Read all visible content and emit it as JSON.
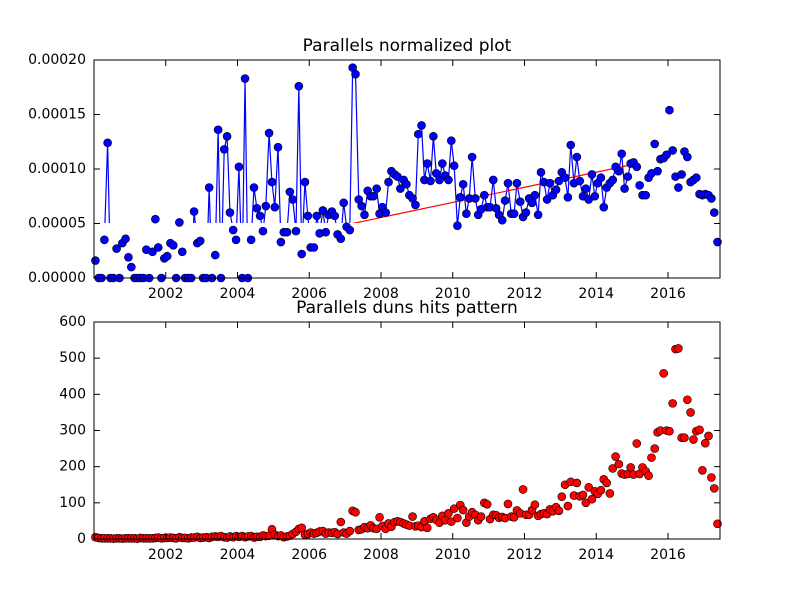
{
  "chart_data": [
    {
      "type": "line",
      "title": "Parallels normalized plot",
      "x": [
        2000.04,
        2000.13,
        2000.21,
        2000.29,
        2000.38,
        2000.46,
        2000.54,
        2000.63,
        2000.71,
        2000.79,
        2000.88,
        2000.96,
        2001.04,
        2001.13,
        2001.21,
        2001.29,
        2001.38,
        2001.46,
        2001.54,
        2001.63,
        2001.71,
        2001.79,
        2001.88,
        2001.96,
        2002.04,
        2002.13,
        2002.21,
        2002.29,
        2002.38,
        2002.46,
        2002.54,
        2002.63,
        2002.71,
        2002.79,
        2002.88,
        2002.96,
        2003.04,
        2003.13,
        2003.21,
        2003.29,
        2003.38,
        2003.46,
        2003.54,
        2003.63,
        2003.71,
        2003.79,
        2003.88,
        2003.96,
        2004.04,
        2004.13,
        2004.21,
        2004.29,
        2004.38,
        2004.46,
        2004.54,
        2004.63,
        2004.71,
        2004.79,
        2004.88,
        2004.96,
        2005.04,
        2005.13,
        2005.21,
        2005.29,
        2005.38,
        2005.46,
        2005.54,
        2005.63,
        2005.71,
        2005.79,
        2005.88,
        2005.96,
        2006.04,
        2006.13,
        2006.21,
        2006.29,
        2006.38,
        2006.46,
        2006.54,
        2006.63,
        2006.71,
        2006.79,
        2006.88,
        2006.96,
        2007.04,
        2007.13,
        2007.21,
        2007.29,
        2007.38,
        2007.46,
        2007.54,
        2007.63,
        2007.71,
        2007.79,
        2007.88,
        2007.96,
        2008.04,
        2008.13,
        2008.21,
        2008.29,
        2008.38,
        2008.46,
        2008.54,
        2008.63,
        2008.71,
        2008.79,
        2008.88,
        2008.96,
        2009.04,
        2009.13,
        2009.21,
        2009.29,
        2009.38,
        2009.46,
        2009.54,
        2009.63,
        2009.71,
        2009.79,
        2009.88,
        2009.96,
        2010.04,
        2010.13,
        2010.21,
        2010.29,
        2010.38,
        2010.46,
        2010.54,
        2010.63,
        2010.71,
        2010.79,
        2010.88,
        2010.96,
        2011.04,
        2011.13,
        2011.21,
        2011.29,
        2011.38,
        2011.46,
        2011.54,
        2011.63,
        2011.71,
        2011.79,
        2011.88,
        2011.96,
        2012.04,
        2012.13,
        2012.21,
        2012.29,
        2012.38,
        2012.46,
        2012.54,
        2012.63,
        2012.71,
        2012.79,
        2012.88,
        2012.96,
        2013.04,
        2013.13,
        2013.21,
        2013.29,
        2013.38,
        2013.46,
        2013.54,
        2013.63,
        2013.71,
        2013.79,
        2013.88,
        2013.96,
        2014.04,
        2014.13,
        2014.21,
        2014.29,
        2014.38,
        2014.46,
        2014.54,
        2014.63,
        2014.71,
        2014.79,
        2014.88,
        2014.96,
        2015.04,
        2015.13,
        2015.21,
        2015.29,
        2015.38,
        2015.46,
        2015.54,
        2015.63,
        2015.71,
        2015.79,
        2015.88,
        2015.96,
        2016.04,
        2016.13,
        2016.21,
        2016.29,
        2016.38,
        2016.46,
        2016.54,
        2016.63,
        2016.71,
        2016.79,
        2016.88,
        2016.96,
        2017.04,
        2017.13,
        2017.21,
        2017.29,
        2017.38
      ],
      "series": [
        {
          "color": "#0000ff",
          "values": [
            1.6e-05,
            0,
            0,
            3.5e-05,
            0.000124,
            0,
            0,
            2.7e-05,
            0,
            3.2e-05,
            3.6e-05,
            1.9e-05,
            1e-05,
            0,
            0,
            0,
            0,
            2.6e-05,
            0,
            2.4e-05,
            5.4e-05,
            2.8e-05,
            0,
            1.8e-05,
            2e-05,
            3.2e-05,
            3e-05,
            0,
            5.1e-05,
            2.4e-05,
            0,
            0,
            0,
            6.1e-05,
            3.2e-05,
            3.4e-05,
            0,
            0,
            8.3e-05,
            0,
            2.1e-05,
            0.000136,
            0,
            0.000118,
            0.00013,
            6e-05,
            4.4e-05,
            3.5e-05,
            0.000102,
            0,
            0.000183,
            0,
            3.5e-05,
            8.3e-05,
            6.4e-05,
            5.7e-05,
            4.3e-05,
            6.6e-05,
            0.000133,
            8.8e-05,
            6.5e-05,
            0.00012,
            3.3e-05,
            4.2e-05,
            4.2e-05,
            7.9e-05,
            7.2e-05,
            4.3e-05,
            0.000176,
            2.2e-05,
            8.8e-05,
            5.7e-05,
            2.8e-05,
            2.8e-05,
            5.7e-05,
            4.1e-05,
            6.2e-05,
            4.2e-05,
            5.8e-05,
            6.1e-05,
            5.7e-05,
            4e-05,
            3.6e-05,
            6.9e-05,
            4.7e-05,
            4.4e-05,
            0.000193,
            0.000187,
            7.2e-05,
            6.6e-05,
            5.8e-05,
            8e-05,
            7.5e-05,
            7.5e-05,
            8.2e-05,
            5.9e-05,
            6.5e-05,
            6e-05,
            8.8e-05,
            9.8e-05,
            9.5e-05,
            9.3e-05,
            8.2e-05,
            9e-05,
            8.6e-05,
            7.6e-05,
            7.3e-05,
            6.7e-05,
            0.000132,
            0.00014,
            9e-05,
            0.000105,
            8.9e-05,
            0.00013,
            9.6e-05,
            9e-05,
            0.000105,
            9.4e-05,
            9e-05,
            0.000126,
            0.000103,
            4.8e-05,
            7.4e-05,
            8.6e-05,
            5.9e-05,
            7.3e-05,
            0.000111,
            7.3e-05,
            5.8e-05,
            6.3e-05,
            7.6e-05,
            6.5e-05,
            6.5e-05,
            9e-05,
            6.4e-05,
            5.8e-05,
            5.3e-05,
            7.1e-05,
            8.7e-05,
            5.9e-05,
            5.9e-05,
            8.7e-05,
            7e-05,
            5.6e-05,
            6e-05,
            7.3e-05,
            6.9e-05,
            7.6e-05,
            5.8e-05,
            9.7e-05,
            8.8e-05,
            7.2e-05,
            8.7e-05,
            7.6e-05,
            8.1e-05,
            8.9e-05,
            9.7e-05,
            9.2e-05,
            7.4e-05,
            0.000122,
            8.7e-05,
            0.000111,
            8.9e-05,
            7.5e-05,
            8.2e-05,
            7.2e-05,
            9.5e-05,
            7.5e-05,
            8.7e-05,
            9.2e-05,
            6.5e-05,
            8.3e-05,
            8.7e-05,
            9e-05,
            0.000102,
            9.8e-05,
            0.000114,
            8.2e-05,
            9.3e-05,
            0.000105,
            0.000106,
            0.000102,
            8.5e-05,
            7.6e-05,
            7.6e-05,
            9.2e-05,
            9.6e-05,
            0.000123,
            9.8e-05,
            0.000109,
            0.00011,
            0.000113,
            0.000154,
            0.000117,
            9.3e-05,
            8.3e-05,
            9.5e-05,
            0.000116,
            0.000111,
            8.8e-05,
            9e-05,
            9.2e-05,
            7.7e-05,
            7.6e-05,
            7.7e-05,
            7.6e-05,
            7.3e-05,
            6e-05,
            3.3e-05
          ]
        }
      ],
      "trend_line": {
        "color": "#ff0000",
        "x": [
          2000,
          2017.45
        ],
        "values": [
          0,
          0.000121
        ]
      },
      "xlim": [
        2000,
        2017.45
      ],
      "xticks": [
        2002,
        2004,
        2006,
        2008,
        2010,
        2012,
        2014,
        2016
      ],
      "ylim": [
        0,
        0.0002
      ],
      "yticks": [
        {
          "value": 0,
          "label": "0.00000"
        },
        {
          "value": 5e-05,
          "label": "0.00005"
        },
        {
          "value": 0.0001,
          "label": "0.00010"
        },
        {
          "value": 0.00015,
          "label": "0.00015"
        },
        {
          "value": 0.0002,
          "label": "0.00020"
        }
      ]
    },
    {
      "type": "line",
      "title": "Parallels duns hits pattern",
      "x": [
        2000.04,
        2000.13,
        2000.21,
        2000.29,
        2000.38,
        2000.46,
        2000.54,
        2000.63,
        2000.71,
        2000.79,
        2000.88,
        2000.96,
        2001.04,
        2001.13,
        2001.21,
        2001.29,
        2001.38,
        2001.46,
        2001.54,
        2001.63,
        2001.71,
        2001.79,
        2001.88,
        2001.96,
        2002.04,
        2002.13,
        2002.21,
        2002.29,
        2002.38,
        2002.46,
        2002.54,
        2002.63,
        2002.71,
        2002.79,
        2002.88,
        2002.96,
        2003.04,
        2003.13,
        2003.21,
        2003.29,
        2003.38,
        2003.46,
        2003.54,
        2003.63,
        2003.71,
        2003.79,
        2003.88,
        2003.96,
        2004.04,
        2004.13,
        2004.21,
        2004.29,
        2004.38,
        2004.46,
        2004.54,
        2004.63,
        2004.71,
        2004.79,
        2004.88,
        2004.96,
        2005.04,
        2005.13,
        2005.21,
        2005.29,
        2005.38,
        2005.46,
        2005.54,
        2005.63,
        2005.71,
        2005.79,
        2005.88,
        2005.96,
        2006.04,
        2006.13,
        2006.21,
        2006.29,
        2006.38,
        2006.46,
        2006.54,
        2006.63,
        2006.71,
        2006.79,
        2006.88,
        2006.96,
        2007.04,
        2007.13,
        2007.21,
        2007.29,
        2007.38,
        2007.46,
        2007.54,
        2007.63,
        2007.71,
        2007.79,
        2007.88,
        2007.96,
        2008.04,
        2008.13,
        2008.21,
        2008.29,
        2008.38,
        2008.46,
        2008.54,
        2008.63,
        2008.71,
        2008.79,
        2008.88,
        2008.96,
        2009.04,
        2009.13,
        2009.21,
        2009.29,
        2009.38,
        2009.46,
        2009.54,
        2009.63,
        2009.71,
        2009.79,
        2009.88,
        2009.96,
        2010.04,
        2010.13,
        2010.21,
        2010.29,
        2010.38,
        2010.46,
        2010.54,
        2010.63,
        2010.71,
        2010.79,
        2010.88,
        2010.96,
        2011.04,
        2011.13,
        2011.21,
        2011.29,
        2011.38,
        2011.46,
        2011.54,
        2011.63,
        2011.71,
        2011.79,
        2011.88,
        2011.96,
        2012.04,
        2012.13,
        2012.21,
        2012.29,
        2012.38,
        2012.46,
        2012.54,
        2012.63,
        2012.71,
        2012.79,
        2012.88,
        2012.96,
        2013.04,
        2013.13,
        2013.21,
        2013.29,
        2013.38,
        2013.46,
        2013.54,
        2013.63,
        2013.71,
        2013.79,
        2013.88,
        2013.96,
        2014.04,
        2014.13,
        2014.21,
        2014.29,
        2014.38,
        2014.46,
        2014.54,
        2014.63,
        2014.71,
        2014.79,
        2014.88,
        2014.96,
        2015.04,
        2015.13,
        2015.21,
        2015.29,
        2015.38,
        2015.46,
        2015.54,
        2015.63,
        2015.71,
        2015.79,
        2015.88,
        2015.96,
        2016.04,
        2016.13,
        2016.21,
        2016.29,
        2016.38,
        2016.46,
        2016.54,
        2016.63,
        2016.71,
        2016.79,
        2016.88,
        2016.96,
        2017.04,
        2017.13,
        2017.21,
        2017.29,
        2017.38
      ],
      "series": [
        {
          "color": "#ff0000",
          "values": [
            5,
            3,
            2,
            2,
            2,
            2,
            1,
            2,
            2,
            1,
            2,
            2,
            2,
            2,
            1,
            3,
            2,
            2,
            2,
            2,
            3,
            4,
            2,
            3,
            3,
            4,
            3,
            2,
            5,
            3,
            3,
            2,
            4,
            4,
            6,
            3,
            4,
            5,
            3,
            6,
            7,
            6,
            8,
            5,
            4,
            7,
            5,
            8,
            6,
            8,
            5,
            7,
            8,
            4,
            6,
            6,
            10,
            8,
            9,
            27,
            12,
            8,
            10,
            5,
            7,
            9,
            14,
            20,
            28,
            31,
            12,
            14,
            18,
            15,
            17,
            21,
            22,
            15,
            18,
            17,
            19,
            14,
            47,
            18,
            15,
            22,
            78,
            74,
            25,
            27,
            33,
            30,
            38,
            30,
            28,
            60,
            36,
            28,
            43,
            34,
            47,
            49,
            47,
            43,
            40,
            37,
            62,
            35,
            37,
            33,
            49,
            31,
            56,
            60,
            53,
            45,
            64,
            52,
            71,
            48,
            84,
            58,
            94,
            80,
            45,
            62,
            74,
            67,
            52,
            62,
            100,
            96,
            55,
            67,
            66,
            59,
            61,
            58,
            97,
            62,
            60,
            79,
            71,
            137,
            67,
            67,
            80,
            95,
            64,
            69,
            71,
            69,
            82,
            77,
            88,
            78,
            117,
            150,
            91,
            158,
            120,
            155,
            118,
            122,
            100,
            143,
            110,
            132,
            125,
            135,
            165,
            155,
            126,
            195,
            228,
            207,
            181,
            178,
            180,
            198,
            178,
            264,
            180,
            198,
            187,
            175,
            225,
            250,
            295,
            300,
            458,
            300,
            298,
            375,
            525,
            527,
            280,
            280,
            385,
            350,
            275,
            298,
            302,
            190,
            265,
            285,
            170,
            140,
            42
          ]
        }
      ],
      "xlim": [
        2000,
        2017.45
      ],
      "xticks": [
        2002,
        2004,
        2006,
        2008,
        2010,
        2012,
        2014,
        2016
      ],
      "ylim": [
        0,
        600
      ],
      "yticks": [
        0,
        100,
        200,
        300,
        400,
        500,
        600
      ]
    }
  ]
}
